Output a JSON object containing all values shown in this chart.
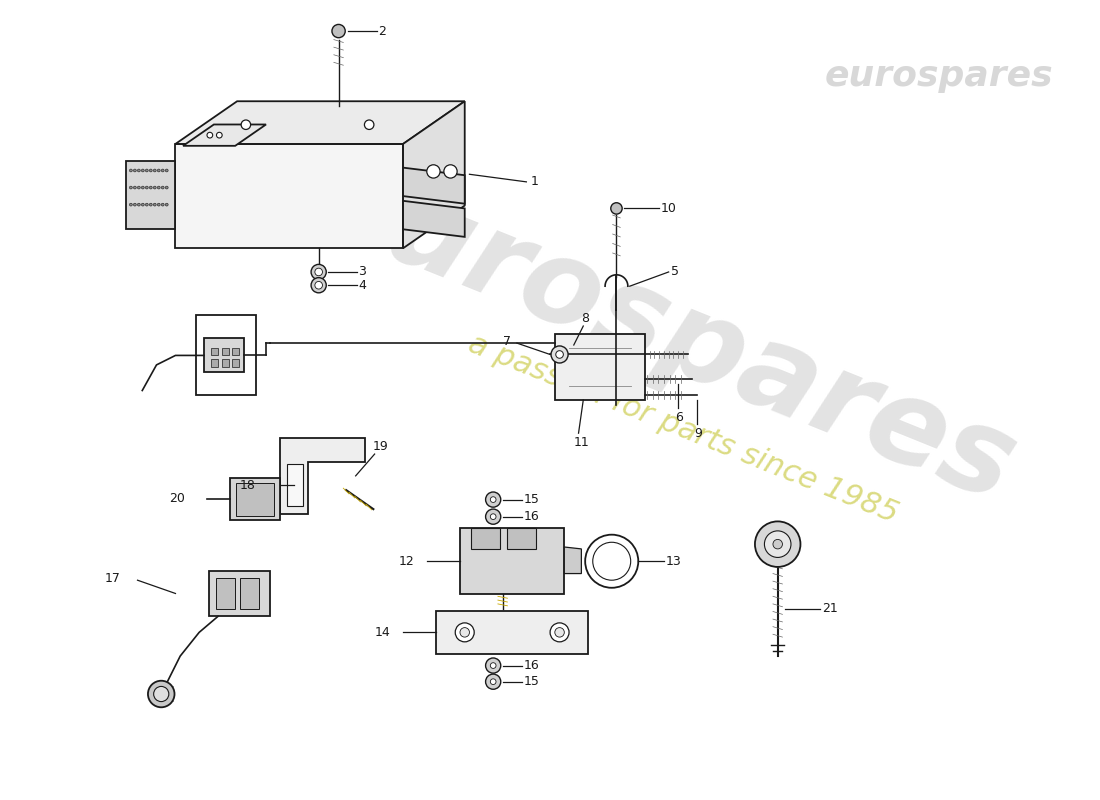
{
  "background_color": "#ffffff",
  "line_color": "#1a1a1a",
  "watermark1": "eurospares",
  "watermark2": "a passion for parts since 1985",
  "wm1_color": "#c8c8c8",
  "wm2_color": "#c8c840",
  "figsize": [
    11.0,
    8.0
  ],
  "dpi": 100
}
